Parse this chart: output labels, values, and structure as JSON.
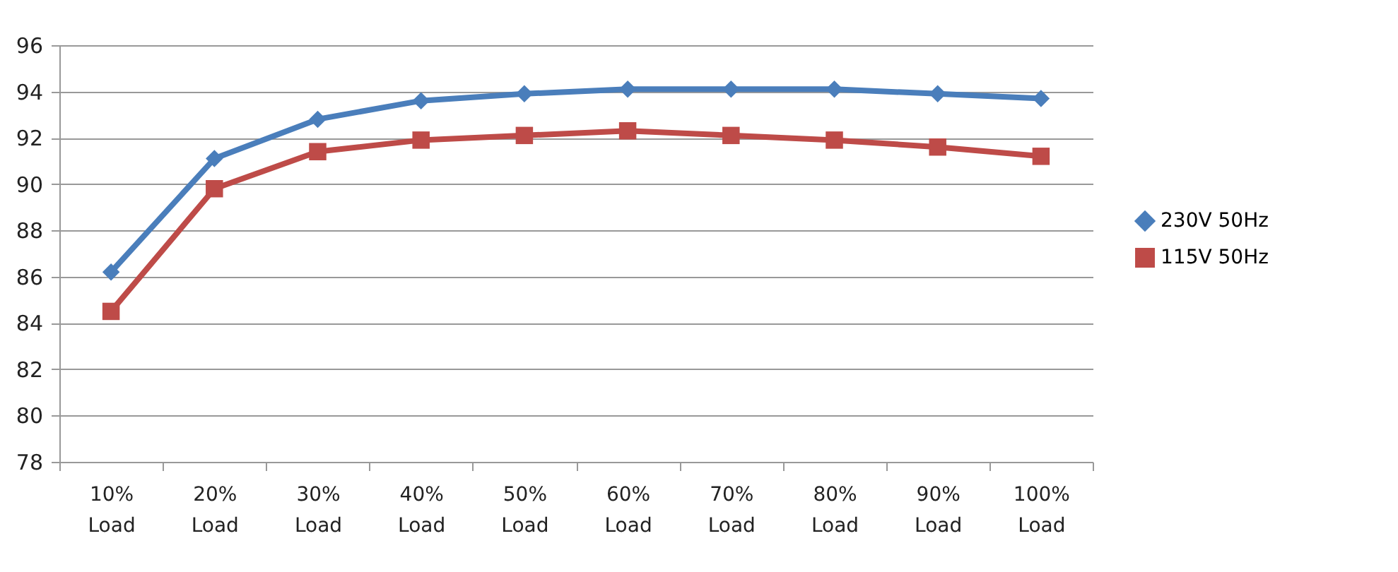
{
  "chart_data": {
    "type": "line",
    "categories": [
      "10% Load",
      "20% Load",
      "30% Load",
      "40% Load",
      "50% Load",
      "60% Load",
      "70% Load",
      "80% Load",
      "90% Load",
      "100% Load"
    ],
    "series": [
      {
        "name": "230V 50Hz",
        "color": "#4a7ebb",
        "marker": "diamond",
        "values": [
          86.2,
          91.1,
          92.8,
          93.6,
          93.9,
          94.1,
          94.1,
          94.1,
          93.9,
          93.7
        ]
      },
      {
        "name": "115V 50Hz",
        "color": "#be4b48",
        "marker": "square",
        "values": [
          84.5,
          89.8,
          91.4,
          91.9,
          92.1,
          92.3,
          92.1,
          91.9,
          91.6,
          91.2
        ]
      }
    ],
    "ylim": [
      78,
      96
    ],
    "yticks": [
      78,
      80,
      82,
      84,
      86,
      88,
      90,
      92,
      94,
      96
    ],
    "grid": "y",
    "legend": "right",
    "line_style": "solid"
  }
}
